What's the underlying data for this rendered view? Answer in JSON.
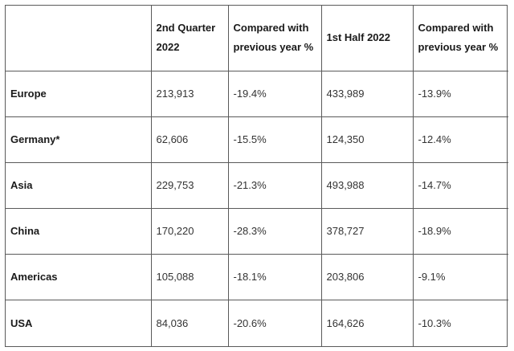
{
  "table": {
    "headers": [
      "",
      "2nd Quarter 2022",
      "Compared with previous year %",
      "1st Half 2022",
      "Compared with previous year %"
    ],
    "rows": [
      {
        "region": "Europe",
        "q2": "213,913",
        "q2_change": "-19.4%",
        "h1": "433,989",
        "h1_change": "-13.9%"
      },
      {
        "region": "Germany*",
        "q2": "62,606",
        "q2_change": "-15.5%",
        "h1": "124,350",
        "h1_change": "-12.4%"
      },
      {
        "region": "Asia",
        "q2": "229,753",
        "q2_change": "-21.3%",
        "h1": "493,988",
        "h1_change": "-14.7%"
      },
      {
        "region": "China",
        "q2": "170,220",
        "q2_change": "-28.3%",
        "h1": "378,727",
        "h1_change": "-18.9%"
      },
      {
        "region": "Americas",
        "q2": "105,088",
        "q2_change": "-18.1%",
        "h1": "203,806",
        "h1_change": "-9.1%"
      },
      {
        "region": "USA",
        "q2": "84,036",
        "q2_change": "-20.6%",
        "h1": "164,626",
        "h1_change": "-10.3%"
      }
    ]
  }
}
